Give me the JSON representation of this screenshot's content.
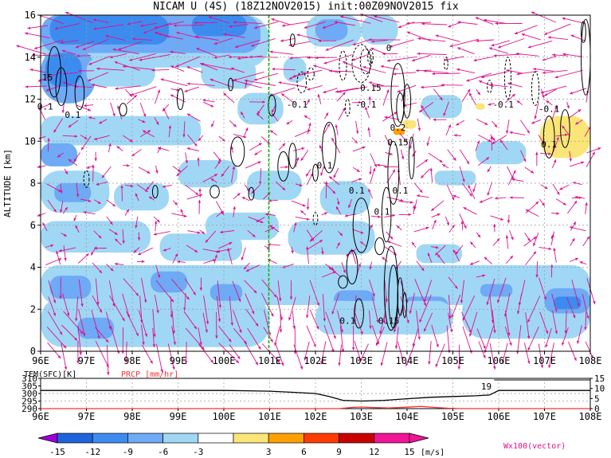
{
  "title": "NICAM U (4S) (18Z12NOV2015) init:00Z09NOV2015 fix",
  "chart_data": [
    {
      "type": "heatmap",
      "name": "zonal-wind-cross-section",
      "ylabel": "ALTITUDE [km]",
      "x_ticks": [
        "96E",
        "97E",
        "98E",
        "99E",
        "100E",
        "101E",
        "102E",
        "103E",
        "104E",
        "105E",
        "106E",
        "107E",
        "108E"
      ],
      "xlim": [
        96,
        108
      ],
      "y_ticks": [
        "0",
        "2",
        "4",
        "6",
        "8",
        "10",
        "12",
        "14",
        "16"
      ],
      "ylim": [
        0,
        16
      ],
      "grid": true,
      "reference_line_lon": 100.98,
      "contour_labels": [
        {
          "text": "15",
          "lon": 96.15,
          "alt": 12.9
        },
        {
          "text": "0.1",
          "lon": 96.1,
          "alt": 11.5
        },
        {
          "text": "0.1",
          "lon": 96.7,
          "alt": 11.1
        },
        {
          "text": "-0.1",
          "lon": 101.6,
          "alt": 11.6
        },
        {
          "text": "0",
          "lon": 103.6,
          "alt": 14.3
        },
        {
          "text": "-0.15",
          "lon": 103.15,
          "alt": 12.4
        },
        {
          "text": "-0.1",
          "lon": 103.1,
          "alt": 11.6
        },
        {
          "text": "0.2",
          "lon": 103.8,
          "alt": 10.5
        },
        {
          "text": "0.15",
          "lon": 103.8,
          "alt": 9.8
        },
        {
          "text": "0.1",
          "lon": 102.2,
          "alt": 8.7
        },
        {
          "text": "0.1",
          "lon": 102.9,
          "alt": 7.5
        },
        {
          "text": "0.1",
          "lon": 103.85,
          "alt": 7.5
        },
        {
          "text": "0.1",
          "lon": 103.45,
          "alt": 6.5
        },
        {
          "text": "-0.1",
          "lon": 106.1,
          "alt": 11.6
        },
        {
          "text": "-0.1",
          "lon": 107.1,
          "alt": 11.4
        },
        {
          "text": "0.1",
          "lon": 107.1,
          "alt": 9.7
        },
        {
          "text": "0.1",
          "lon": 102.7,
          "alt": 1.3
        },
        {
          "text": "0.15",
          "lon": 103.6,
          "alt": 1.3
        }
      ]
    },
    {
      "type": "line",
      "name": "surface-panel",
      "xlabel": "",
      "left_label": "TEM(SFC)[K]",
      "right_label": "PRCP [mm/hr]",
      "y_ticks_left": [
        "310",
        "305",
        "300",
        "295",
        "290"
      ],
      "ylim_left": [
        290,
        310
      ],
      "y_ticks_right": [
        "15",
        "10",
        "5",
        "0"
      ],
      "ylim_right": [
        0,
        15
      ],
      "x_ticks": [
        "96E",
        "97E",
        "98E",
        "99E",
        "100E",
        "101E",
        "102E",
        "103E",
        "104E",
        "105E",
        "106E",
        "107E",
        "108E"
      ],
      "series": [
        {
          "name": "TEM(SFC)",
          "color": "#000000",
          "x": [
            96,
            97,
            98,
            99,
            100,
            100.5,
            101,
            101.5,
            102,
            102.3,
            102.6,
            103,
            103.5,
            104,
            104.5,
            105,
            105.5,
            105.8,
            105.9,
            106,
            106.2,
            107,
            108
          ],
          "values": [
            302,
            302,
            302,
            302,
            302,
            301.8,
            301.5,
            300.8,
            300,
            298,
            295.5,
            295,
            295.5,
            296.5,
            297.5,
            298,
            298.5,
            299,
            300.5,
            302,
            302,
            302,
            302
          ]
        },
        {
          "name": "PRCP",
          "color": "#ff3030",
          "x": [
            96,
            102.5,
            102.8,
            103,
            103.3,
            103.6,
            104,
            104.3,
            104.6,
            104.9,
            105.2,
            108
          ],
          "values": [
            0,
            0,
            0.6,
            0.8,
            0.5,
            0.3,
            0.7,
            1.1,
            0.6,
            0.2,
            0,
            0
          ]
        }
      ],
      "annotations": [
        {
          "text": "19",
          "lon": 105.8
        }
      ]
    }
  ],
  "colorbar": {
    "ticks": [
      "-15",
      "-12",
      "-9",
      "-6",
      "-3",
      "3",
      "6",
      "9",
      "12",
      "15"
    ],
    "unit": "[m/s]",
    "colors": [
      "#9c00dc",
      "#1e64dc",
      "#3c8cf0",
      "#6eaaf5",
      "#a0d7f5",
      "#ffffff",
      "#fae678",
      "#ffa000",
      "#ff3c00",
      "#c80000",
      "#f01496"
    ]
  },
  "vector_label": "Wx100(vector)",
  "vector_color": "#e0108c"
}
